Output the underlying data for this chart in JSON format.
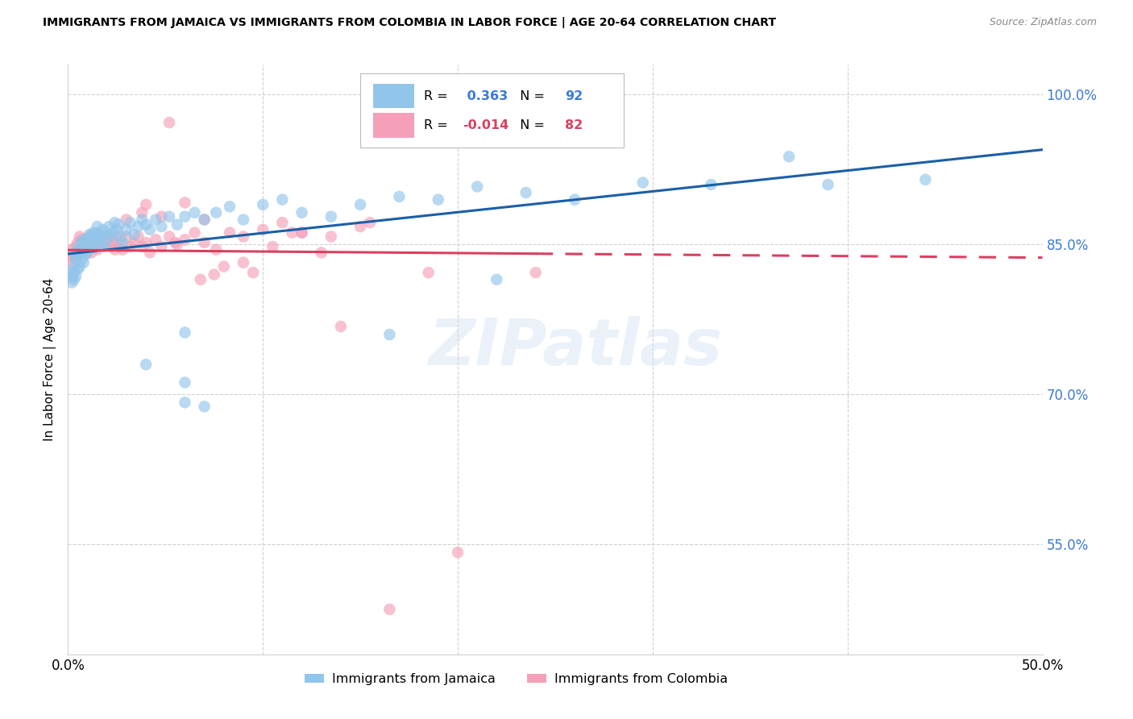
{
  "title": "IMMIGRANTS FROM JAMAICA VS IMMIGRANTS FROM COLOMBIA IN LABOR FORCE | AGE 20-64 CORRELATION CHART",
  "source": "Source: ZipAtlas.com",
  "ylabel": "In Labor Force | Age 20-64",
  "r_jamaica": 0.363,
  "n_jamaica": 92,
  "r_colombia": -0.014,
  "n_colombia": 82,
  "legend_jamaica": "Immigrants from Jamaica",
  "legend_colombia": "Immigrants from Colombia",
  "color_jamaica": "#92c5ea",
  "color_colombia": "#f5a0b8",
  "line_color_jamaica": "#1a5fa8",
  "line_color_colombia": "#d94060",
  "watermark": "ZIPatlas",
  "x_min": 0.0,
  "x_max": 0.5,
  "y_min": 0.44,
  "y_max": 1.03,
  "jamaica_x": [
    0.001,
    0.002,
    0.002,
    0.003,
    0.003,
    0.003,
    0.004,
    0.004,
    0.004,
    0.005,
    0.005,
    0.005,
    0.006,
    0.006,
    0.006,
    0.007,
    0.007,
    0.007,
    0.008,
    0.008,
    0.008,
    0.009,
    0.009,
    0.009,
    0.01,
    0.01,
    0.01,
    0.011,
    0.011,
    0.012,
    0.012,
    0.013,
    0.013,
    0.014,
    0.014,
    0.015,
    0.015,
    0.016,
    0.016,
    0.017,
    0.018,
    0.018,
    0.019,
    0.02,
    0.021,
    0.022,
    0.023,
    0.024,
    0.025,
    0.026,
    0.027,
    0.028,
    0.03,
    0.032,
    0.034,
    0.036,
    0.038,
    0.04,
    0.042,
    0.045,
    0.048,
    0.052,
    0.056,
    0.06,
    0.065,
    0.07,
    0.076,
    0.083,
    0.09,
    0.1,
    0.11,
    0.12,
    0.135,
    0.15,
    0.17,
    0.19,
    0.21,
    0.235,
    0.26,
    0.295,
    0.33,
    0.37,
    0.04,
    0.06,
    0.06,
    0.07,
    0.165,
    0.22,
    0.23,
    0.39,
    0.44,
    0.06
  ],
  "jamaica_y": [
    0.822,
    0.818,
    0.812,
    0.828,
    0.822,
    0.815,
    0.835,
    0.84,
    0.818,
    0.845,
    0.838,
    0.825,
    0.848,
    0.842,
    0.828,
    0.852,
    0.845,
    0.835,
    0.855,
    0.848,
    0.832,
    0.852,
    0.845,
    0.84,
    0.855,
    0.848,
    0.842,
    0.852,
    0.86,
    0.858,
    0.848,
    0.855,
    0.862,
    0.86,
    0.85,
    0.858,
    0.868,
    0.855,
    0.862,
    0.858,
    0.848,
    0.865,
    0.852,
    0.86,
    0.868,
    0.858,
    0.862,
    0.872,
    0.865,
    0.87,
    0.858,
    0.852,
    0.865,
    0.872,
    0.86,
    0.868,
    0.875,
    0.87,
    0.865,
    0.875,
    0.868,
    0.878,
    0.87,
    0.878,
    0.882,
    0.875,
    0.882,
    0.888,
    0.875,
    0.89,
    0.895,
    0.882,
    0.878,
    0.89,
    0.898,
    0.895,
    0.908,
    0.902,
    0.895,
    0.912,
    0.91,
    0.938,
    0.73,
    0.762,
    0.692,
    0.688,
    0.76,
    0.815,
    0.992,
    0.91,
    0.915,
    0.712
  ],
  "colombia_x": [
    0.001,
    0.002,
    0.002,
    0.003,
    0.004,
    0.004,
    0.005,
    0.005,
    0.006,
    0.006,
    0.007,
    0.007,
    0.008,
    0.008,
    0.009,
    0.01,
    0.01,
    0.011,
    0.012,
    0.012,
    0.013,
    0.014,
    0.015,
    0.015,
    0.016,
    0.017,
    0.018,
    0.019,
    0.02,
    0.021,
    0.022,
    0.023,
    0.024,
    0.025,
    0.026,
    0.027,
    0.028,
    0.03,
    0.032,
    0.034,
    0.036,
    0.038,
    0.04,
    0.042,
    0.045,
    0.048,
    0.052,
    0.056,
    0.06,
    0.065,
    0.07,
    0.076,
    0.083,
    0.09,
    0.1,
    0.11,
    0.12,
    0.135,
    0.15,
    0.03,
    0.038,
    0.04,
    0.048,
    0.06,
    0.07,
    0.052,
    0.095,
    0.13,
    0.155,
    0.055,
    0.09,
    0.105,
    0.075,
    0.068,
    0.115,
    0.08,
    0.14,
    0.185,
    0.2,
    0.24,
    0.12,
    0.165
  ],
  "colombia_y": [
    0.838,
    0.845,
    0.832,
    0.84,
    0.848,
    0.838,
    0.852,
    0.842,
    0.858,
    0.845,
    0.855,
    0.845,
    0.852,
    0.842,
    0.855,
    0.852,
    0.845,
    0.858,
    0.852,
    0.842,
    0.855,
    0.848,
    0.858,
    0.845,
    0.852,
    0.848,
    0.855,
    0.848,
    0.852,
    0.858,
    0.848,
    0.852,
    0.845,
    0.858,
    0.848,
    0.852,
    0.845,
    0.858,
    0.848,
    0.852,
    0.858,
    0.848,
    0.852,
    0.842,
    0.855,
    0.848,
    0.858,
    0.85,
    0.855,
    0.862,
    0.852,
    0.845,
    0.862,
    0.858,
    0.865,
    0.872,
    0.862,
    0.858,
    0.868,
    0.875,
    0.882,
    0.89,
    0.878,
    0.892,
    0.875,
    0.972,
    0.822,
    0.842,
    0.872,
    0.852,
    0.832,
    0.848,
    0.82,
    0.815,
    0.862,
    0.828,
    0.768,
    0.822,
    0.542,
    0.822,
    0.862,
    0.485
  ]
}
